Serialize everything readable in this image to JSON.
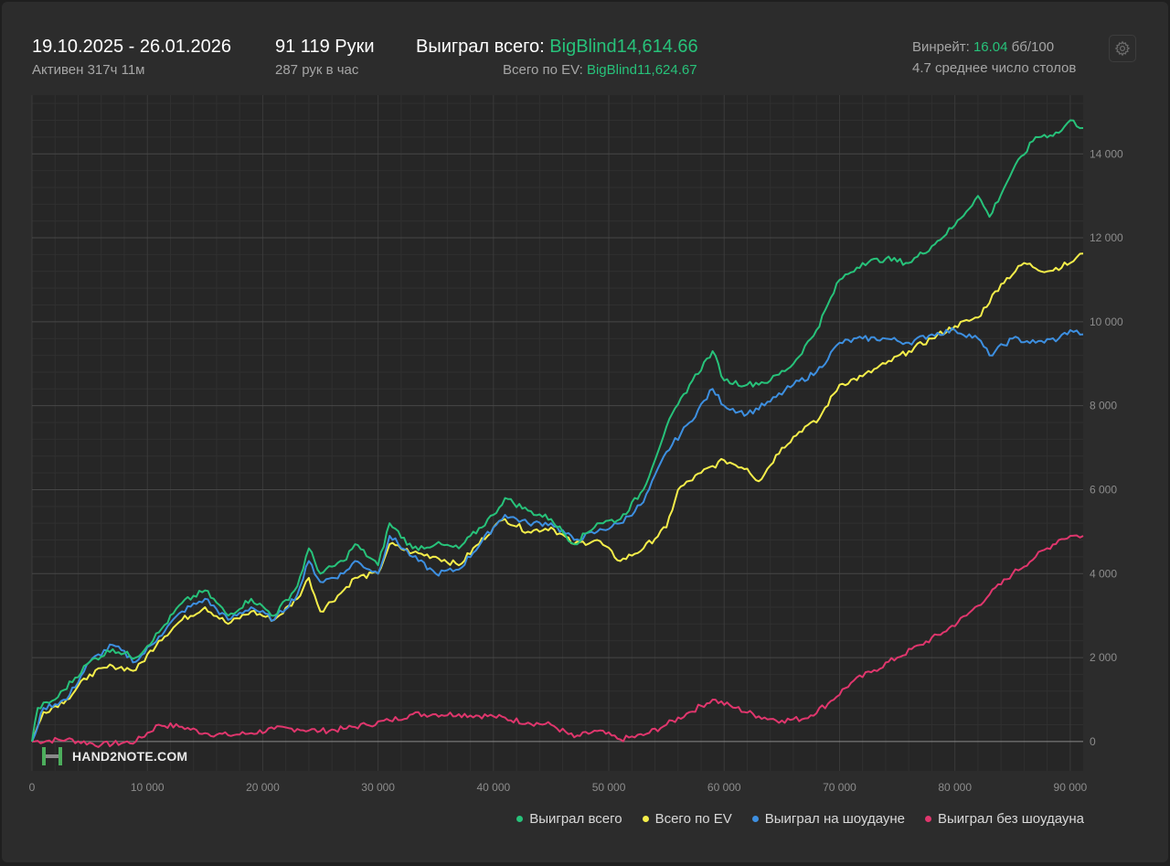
{
  "header": {
    "date_range": "19.10.2025 - 26.01.2026",
    "active_time": "Активен 317ч 11м",
    "hands": "91 119 Руки",
    "hands_per_hour": "287 рук в час",
    "won_total_label": "Выиграл всего:",
    "won_total_value": "BigBlind14,614.66",
    "ev_label": "Всего по EV:",
    "ev_value": "BigBlind11,624.67",
    "winrate_label": "Винрейт:",
    "winrate_value": "16.04",
    "winrate_unit": "бб/100",
    "avg_tables": "4.7 среднее число столов"
  },
  "icons": {
    "settings": "gear-icon",
    "logo": "hand2note-logo"
  },
  "logo_text": "HAND2NOTE.COM",
  "colors": {
    "won_total": "#27c27a",
    "ev": "#f5ee4a",
    "showdown": "#3d8fe0",
    "non_showdown": "#e0366d",
    "accent": "#27c27a"
  },
  "chart_data": {
    "type": "line",
    "x_ticks": [
      "0",
      "10 000",
      "20 000",
      "30 000",
      "40 000",
      "50 000",
      "60 000",
      "70 000",
      "80 000",
      "90 000"
    ],
    "y_ticks": [
      "0",
      "2 000",
      "4 000",
      "6 000",
      "8 000",
      "10 000",
      "12 000",
      "14 000"
    ],
    "xlim": [
      0,
      91119
    ],
    "ylim": [
      -700,
      15400
    ],
    "grid": true,
    "legend_position": "bottom-right",
    "series": [
      {
        "name": "Выиграл всего",
        "color": "#27c27a",
        "points": [
          [
            0,
            0
          ],
          [
            500,
            800
          ],
          [
            2000,
            1000
          ],
          [
            5000,
            1900
          ],
          [
            7000,
            2200
          ],
          [
            9000,
            2000
          ],
          [
            11000,
            2600
          ],
          [
            13000,
            3300
          ],
          [
            15000,
            3600
          ],
          [
            17000,
            3000
          ],
          [
            19000,
            3400
          ],
          [
            21000,
            3000
          ],
          [
            23000,
            3700
          ],
          [
            24000,
            4600
          ],
          [
            25000,
            4000
          ],
          [
            27000,
            4300
          ],
          [
            28000,
            4700
          ],
          [
            30000,
            4200
          ],
          [
            31000,
            5200
          ],
          [
            33000,
            4600
          ],
          [
            35000,
            4700
          ],
          [
            37000,
            4600
          ],
          [
            40000,
            5400
          ],
          [
            41000,
            5800
          ],
          [
            43000,
            5500
          ],
          [
            45000,
            5300
          ],
          [
            47000,
            4700
          ],
          [
            49000,
            5200
          ],
          [
            51000,
            5300
          ],
          [
            53000,
            6000
          ],
          [
            55000,
            7500
          ],
          [
            57000,
            8500
          ],
          [
            59000,
            9300
          ],
          [
            60000,
            8600
          ],
          [
            62000,
            8500
          ],
          [
            64000,
            8600
          ],
          [
            66000,
            9000
          ],
          [
            68000,
            9800
          ],
          [
            70000,
            11000
          ],
          [
            72000,
            11400
          ],
          [
            74000,
            11500
          ],
          [
            76000,
            11400
          ],
          [
            78000,
            11800
          ],
          [
            80000,
            12300
          ],
          [
            82000,
            13000
          ],
          [
            83000,
            12500
          ],
          [
            85000,
            13600
          ],
          [
            87000,
            14400
          ],
          [
            89000,
            14500
          ],
          [
            90000,
            14800
          ],
          [
            91119,
            14615
          ]
        ]
      },
      {
        "name": "Всего по EV",
        "color": "#f5ee4a",
        "points": [
          [
            0,
            0
          ],
          [
            1000,
            700
          ],
          [
            3000,
            1000
          ],
          [
            5000,
            1600
          ],
          [
            7000,
            1800
          ],
          [
            9000,
            1700
          ],
          [
            11000,
            2400
          ],
          [
            13000,
            2900
          ],
          [
            15000,
            3200
          ],
          [
            17000,
            2800
          ],
          [
            19000,
            3100
          ],
          [
            21000,
            2900
          ],
          [
            23000,
            3400
          ],
          [
            24000,
            3900
          ],
          [
            25000,
            3100
          ],
          [
            27000,
            3600
          ],
          [
            28000,
            3900
          ],
          [
            30000,
            4000
          ],
          [
            31000,
            4700
          ],
          [
            33000,
            4500
          ],
          [
            35000,
            4400
          ],
          [
            37000,
            4200
          ],
          [
            40000,
            5100
          ],
          [
            41000,
            5300
          ],
          [
            43000,
            5000
          ],
          [
            45000,
            5100
          ],
          [
            47000,
            4700
          ],
          [
            49000,
            4800
          ],
          [
            51000,
            4300
          ],
          [
            53000,
            4600
          ],
          [
            55000,
            5100
          ],
          [
            56000,
            6000
          ],
          [
            58000,
            6400
          ],
          [
            60000,
            6700
          ],
          [
            62000,
            6500
          ],
          [
            63000,
            6200
          ],
          [
            65000,
            7000
          ],
          [
            67000,
            7500
          ],
          [
            68000,
            7600
          ],
          [
            70000,
            8500
          ],
          [
            72000,
            8700
          ],
          [
            74000,
            9000
          ],
          [
            76000,
            9300
          ],
          [
            78000,
            9600
          ],
          [
            80000,
            9900
          ],
          [
            82000,
            10100
          ],
          [
            84000,
            10900
          ],
          [
            86000,
            11400
          ],
          [
            88000,
            11200
          ],
          [
            90000,
            11400
          ],
          [
            91119,
            11625
          ]
        ]
      },
      {
        "name": "Выиграл на шоудауне",
        "color": "#3d8fe0",
        "points": [
          [
            0,
            0
          ],
          [
            1000,
            800
          ],
          [
            3000,
            1000
          ],
          [
            5000,
            1900
          ],
          [
            7000,
            2300
          ],
          [
            9000,
            1900
          ],
          [
            11000,
            2500
          ],
          [
            13000,
            3100
          ],
          [
            15000,
            3400
          ],
          [
            17000,
            2900
          ],
          [
            19000,
            3200
          ],
          [
            21000,
            2900
          ],
          [
            23000,
            3500
          ],
          [
            24000,
            4300
          ],
          [
            25000,
            3800
          ],
          [
            27000,
            4000
          ],
          [
            28000,
            4300
          ],
          [
            30000,
            4000
          ],
          [
            31000,
            4900
          ],
          [
            33000,
            4400
          ],
          [
            35000,
            4000
          ],
          [
            37000,
            4100
          ],
          [
            40000,
            5100
          ],
          [
            41000,
            5400
          ],
          [
            43000,
            5200
          ],
          [
            45000,
            5200
          ],
          [
            47000,
            4800
          ],
          [
            49000,
            5000
          ],
          [
            51000,
            5200
          ],
          [
            53000,
            5700
          ],
          [
            55000,
            6900
          ],
          [
            57000,
            7600
          ],
          [
            59000,
            8400
          ],
          [
            60000,
            8000
          ],
          [
            62000,
            7800
          ],
          [
            64000,
            8100
          ],
          [
            66000,
            8500
          ],
          [
            68000,
            8800
          ],
          [
            70000,
            9500
          ],
          [
            72000,
            9600
          ],
          [
            74000,
            9600
          ],
          [
            76000,
            9500
          ],
          [
            78000,
            9700
          ],
          [
            80000,
            9800
          ],
          [
            82000,
            9600
          ],
          [
            83000,
            9200
          ],
          [
            85000,
            9600
          ],
          [
            87000,
            9500
          ],
          [
            89000,
            9600
          ],
          [
            90000,
            9800
          ],
          [
            91119,
            9700
          ]
        ]
      },
      {
        "name": "Выиграл без шоудауна",
        "color": "#e0366d",
        "points": [
          [
            0,
            0
          ],
          [
            3000,
            50
          ],
          [
            6000,
            -80
          ],
          [
            9000,
            0
          ],
          [
            11000,
            400
          ],
          [
            13000,
            350
          ],
          [
            15000,
            200
          ],
          [
            17000,
            150
          ],
          [
            19000,
            200
          ],
          [
            21000,
            300
          ],
          [
            23000,
            300
          ],
          [
            25000,
            250
          ],
          [
            27000,
            300
          ],
          [
            29000,
            400
          ],
          [
            31000,
            500
          ],
          [
            33000,
            650
          ],
          [
            35000,
            650
          ],
          [
            37000,
            650
          ],
          [
            40000,
            600
          ],
          [
            43000,
            450
          ],
          [
            45000,
            400
          ],
          [
            47000,
            100
          ],
          [
            49000,
            250
          ],
          [
            51000,
            50
          ],
          [
            53000,
            150
          ],
          [
            55000,
            400
          ],
          [
            57000,
            700
          ],
          [
            59000,
            1000
          ],
          [
            61000,
            800
          ],
          [
            63000,
            600
          ],
          [
            65000,
            500
          ],
          [
            67000,
            550
          ],
          [
            69000,
            900
          ],
          [
            71000,
            1400
          ],
          [
            73000,
            1700
          ],
          [
            75000,
            2000
          ],
          [
            77000,
            2300
          ],
          [
            79000,
            2600
          ],
          [
            81000,
            3000
          ],
          [
            83000,
            3500
          ],
          [
            85000,
            4000
          ],
          [
            87000,
            4400
          ],
          [
            89000,
            4800
          ],
          [
            90000,
            4900
          ],
          [
            91119,
            4900
          ]
        ]
      }
    ]
  }
}
